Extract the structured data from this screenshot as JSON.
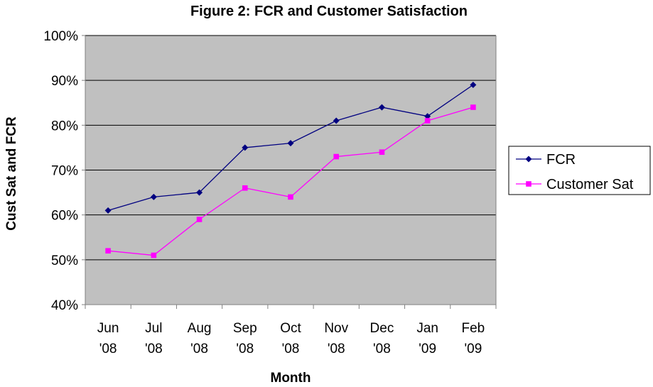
{
  "chart_data": {
    "type": "line",
    "title": "Figure 2: FCR and Customer Satisfaction",
    "xlabel": "Month",
    "ylabel": "Cust Sat and FCR",
    "categories": [
      [
        "Jun",
        "'08"
      ],
      [
        "Jul",
        "'08"
      ],
      [
        "Aug",
        "'08"
      ],
      [
        "Sep",
        "'08"
      ],
      [
        "Oct",
        "'08"
      ],
      [
        "Nov",
        "'08"
      ],
      [
        "Dec",
        "'08"
      ],
      [
        "Jan",
        "'09"
      ],
      [
        "Feb",
        "'09"
      ]
    ],
    "ylim": [
      40,
      100
    ],
    "yticks": [
      40,
      50,
      60,
      70,
      80,
      90,
      100
    ],
    "ytick_labels": [
      "40%",
      "50%",
      "60%",
      "70%",
      "80%",
      "90%",
      "100%"
    ],
    "grid": true,
    "plot_background": "#C0C0C0",
    "legend": "right",
    "series": [
      {
        "name": "FCR",
        "values": [
          61,
          64,
          65,
          75,
          76,
          81,
          84,
          82,
          89
        ],
        "color": "#000080",
        "marker": "diamond"
      },
      {
        "name": "Customer Sat",
        "values": [
          52,
          51,
          59,
          66,
          64,
          73,
          74,
          81,
          84
        ],
        "color": "#FF00FF",
        "marker": "square"
      }
    ]
  }
}
